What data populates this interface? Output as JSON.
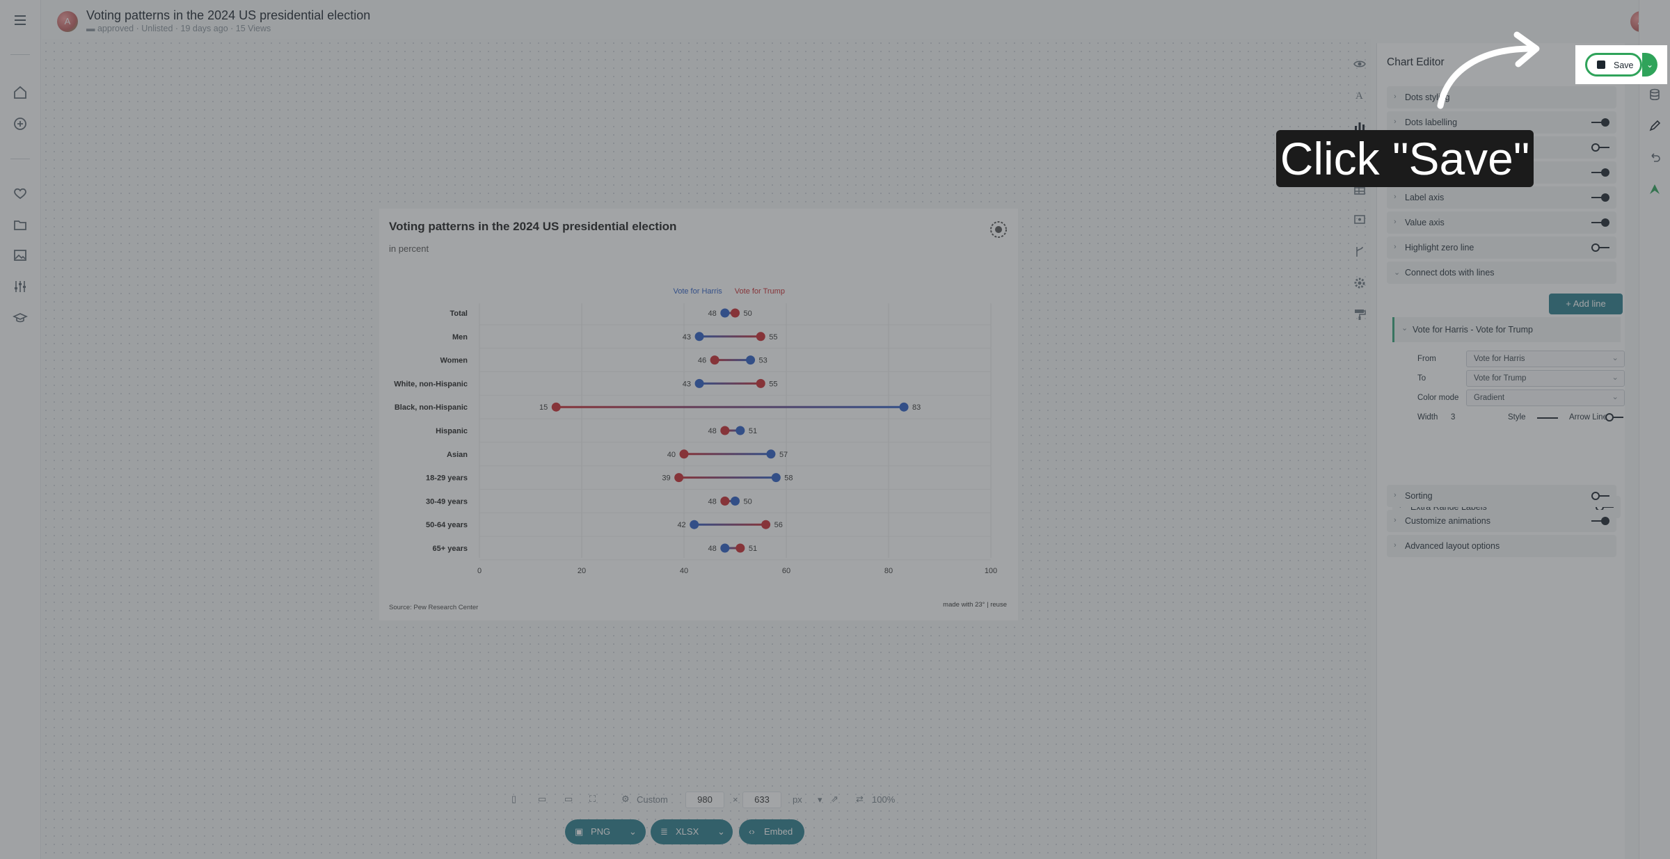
{
  "header": {
    "avatar_letter": "A",
    "doc_title": "Voting patterns in the 2024 US presidential election",
    "meta": {
      "folder": "approved",
      "visibility": "Unlisted",
      "age": "19 days ago",
      "views": "15 Views"
    }
  },
  "chart_data": {
    "type": "dot-plot",
    "title": "Voting patterns in the 2024 US presidential election",
    "subtitle": "in percent",
    "source": "Source: Pew Research Center",
    "credit": "made with 23° | reuse",
    "xlim": [
      0,
      100
    ],
    "x_ticks": [
      0,
      20,
      40,
      60,
      80,
      100
    ],
    "categories": [
      "Total",
      "Men",
      "Women",
      "White, non-Hispanic",
      "Black, non-Hispanic",
      "Hispanic",
      "Asian",
      "18-29 years",
      "30-49 years",
      "50-64 years",
      "65+ years"
    ],
    "series": [
      {
        "name": "Vote for Harris",
        "color": "#2b5cc4",
        "values": [
          48,
          43,
          53,
          43,
          83,
          51,
          57,
          58,
          50,
          42,
          48
        ]
      },
      {
        "name": "Vote for Trump",
        "color": "#c9292f",
        "values": [
          50,
          55,
          46,
          55,
          15,
          48,
          40,
          39,
          48,
          56,
          51
        ]
      }
    ]
  },
  "editor": {
    "title": "Chart Editor",
    "sections": [
      {
        "label": "Dots styling",
        "toggle": null
      },
      {
        "label": "Dots labelling",
        "toggle": "on"
      },
      {
        "label": "",
        "toggle": "off"
      },
      {
        "label": "",
        "toggle": "on"
      },
      {
        "label": "Label axis",
        "toggle": "on"
      },
      {
        "label": "Value axis",
        "toggle": "on"
      },
      {
        "label": "Highlight zero line",
        "toggle": "off"
      },
      {
        "label": "Connect dots with lines",
        "toggle": null
      }
    ],
    "add_line_label": "+ Add line",
    "line": {
      "header": "Vote for Harris - Vote for Trump",
      "from_label": "From",
      "from_value": "Vote for Harris",
      "to_label": "To",
      "to_value": "Vote for Trump",
      "color_mode_label": "Color mode",
      "color_mode_value": "Gradient",
      "width_label": "Width",
      "width_value": "3",
      "style_label": "Style",
      "arrow_label": "Arrow Line"
    },
    "extra_range": "Extra Range Labels",
    "bottom_sections": [
      {
        "label": "Sorting",
        "toggle": "off"
      },
      {
        "label": "Customize animations",
        "toggle": "on"
      },
      {
        "label": "Advanced layout options",
        "toggle": null
      }
    ]
  },
  "save": {
    "label": "Save"
  },
  "callout": "Click \"Save\"",
  "bottom": {
    "preset": "Custom",
    "width": "980",
    "times": "×",
    "height": "633",
    "unit": "px",
    "zoom": "100%",
    "png": "PNG",
    "xlsx": "XLSX",
    "embed": "Embed"
  }
}
